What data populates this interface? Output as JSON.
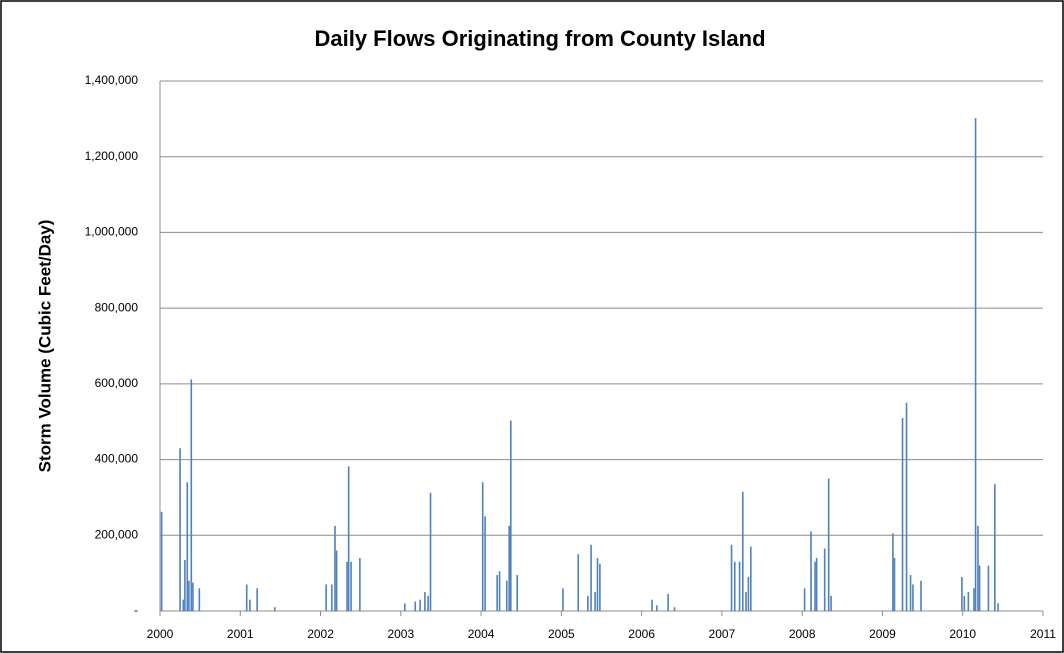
{
  "chart_data": {
    "type": "bar",
    "title": "Daily Flows Originating from County Island",
    "y_label": "Storm Volume (Cubic Feet/Day)",
    "color": "#4f81bd",
    "grid": true,
    "xlim": [
      2000,
      2011
    ],
    "xticks": [
      2000,
      2001,
      2002,
      2003,
      2004,
      2005,
      2006,
      2007,
      2008,
      2009,
      2010,
      2011
    ],
    "ylim": [
      0,
      1400000
    ],
    "yticks": [
      {
        "value": 0,
        "label": "-"
      },
      {
        "value": 200000,
        "label": "200,000"
      },
      {
        "value": 400000,
        "label": "400,000"
      },
      {
        "value": 600000,
        "label": "600,000"
      },
      {
        "value": 800000,
        "label": "800,000"
      },
      {
        "value": 1000000,
        "label": "1,000,000"
      },
      {
        "value": 1200000,
        "label": "1,200,000"
      },
      {
        "value": 1400000,
        "label": "1,400,000"
      }
    ],
    "x": [
      2000.02,
      2000.25,
      2000.29,
      2000.31,
      2000.34,
      2000.36,
      2000.39,
      2000.41,
      2000.49,
      2001.08,
      2001.12,
      2001.21,
      2001.43,
      2002.07,
      2002.14,
      2002.18,
      2002.2,
      2002.33,
      2002.35,
      2002.38,
      2002.49,
      2003.05,
      2003.18,
      2003.24,
      2003.3,
      2003.34,
      2003.37,
      2004.02,
      2004.05,
      2004.2,
      2004.23,
      2004.32,
      2004.35,
      2004.37,
      2004.45,
      2005.02,
      2005.21,
      2005.33,
      2005.37,
      2005.42,
      2005.45,
      2005.48,
      2006.13,
      2006.19,
      2006.33,
      2006.41,
      2007.12,
      2007.16,
      2007.22,
      2007.26,
      2007.3,
      2007.33,
      2007.36,
      2008.03,
      2008.11,
      2008.16,
      2008.18,
      2008.28,
      2008.33,
      2008.36,
      2009.13,
      2009.15,
      2009.25,
      2009.3,
      2009.35,
      2009.38,
      2009.48,
      2009.99,
      2010.02,
      2010.07,
      2010.14,
      2010.16,
      2010.19,
      2010.21,
      2010.32,
      2010.4,
      2010.44
    ],
    "values": [
      262000,
      430000,
      30000,
      135000,
      340000,
      80000,
      612000,
      75000,
      60000,
      70000,
      30000,
      60000,
      10000,
      70000,
      70000,
      225000,
      160000,
      130000,
      382000,
      130000,
      140000,
      20000,
      25000,
      30000,
      50000,
      40000,
      312000,
      340000,
      250000,
      95000,
      105000,
      80000,
      225000,
      503000,
      95000,
      60000,
      150000,
      40000,
      175000,
      50000,
      140000,
      125000,
      30000,
      15000,
      45000,
      10000,
      175000,
      130000,
      130000,
      315000,
      50000,
      90000,
      170000,
      60000,
      210000,
      130000,
      140000,
      165000,
      350000,
      40000,
      205000,
      140000,
      510000,
      550000,
      95000,
      70000,
      80000,
      90000,
      40000,
      50000,
      60000,
      1302000,
      225000,
      120000,
      120000,
      335000,
      20000
    ]
  }
}
